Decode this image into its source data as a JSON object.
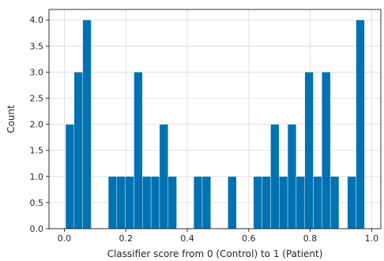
{
  "chart_data": {
    "type": "bar",
    "title": "",
    "xlabel": "Classifier score from 0 (Control) to 1 (Patient)",
    "ylabel": "Count",
    "xlim": [
      -0.05,
      1.03
    ],
    "ylim": [
      0,
      4.2
    ],
    "xticks": [
      0.0,
      0.2,
      0.4,
      0.6,
      0.8,
      1.0
    ],
    "xtick_labels": [
      "0.0",
      "0.2",
      "0.4",
      "0.6",
      "0.8",
      "1.0"
    ],
    "yticks": [
      0.0,
      0.5,
      1.0,
      1.5,
      2.0,
      2.5,
      3.0,
      3.5,
      4.0
    ],
    "ytick_labels": [
      "0.0",
      "0.5",
      "1.0",
      "1.5",
      "2.0",
      "2.5",
      "3.0",
      "3.5",
      "4.0"
    ],
    "grid": true,
    "bar_color": "#0072b2",
    "bin_width": 0.0278,
    "bins": [
      {
        "x": 0.004,
        "count": 2
      },
      {
        "x": 0.0318,
        "count": 3
      },
      {
        "x": 0.0596,
        "count": 4
      },
      {
        "x": 0.143,
        "count": 1
      },
      {
        "x": 0.1708,
        "count": 1
      },
      {
        "x": 0.1986,
        "count": 1
      },
      {
        "x": 0.2264,
        "count": 3
      },
      {
        "x": 0.2542,
        "count": 1
      },
      {
        "x": 0.282,
        "count": 1
      },
      {
        "x": 0.3098,
        "count": 2
      },
      {
        "x": 0.3376,
        "count": 1
      },
      {
        "x": 0.421,
        "count": 1
      },
      {
        "x": 0.4488,
        "count": 1
      },
      {
        "x": 0.5322,
        "count": 1
      },
      {
        "x": 0.6156,
        "count": 1
      },
      {
        "x": 0.6434,
        "count": 1
      },
      {
        "x": 0.6712,
        "count": 2
      },
      {
        "x": 0.699,
        "count": 1
      },
      {
        "x": 0.7268,
        "count": 2
      },
      {
        "x": 0.7546,
        "count": 1
      },
      {
        "x": 0.7824,
        "count": 3
      },
      {
        "x": 0.8102,
        "count": 1
      },
      {
        "x": 0.838,
        "count": 3
      },
      {
        "x": 0.8658,
        "count": 1
      },
      {
        "x": 0.9214,
        "count": 1
      },
      {
        "x": 0.9492,
        "count": 4
      }
    ]
  }
}
